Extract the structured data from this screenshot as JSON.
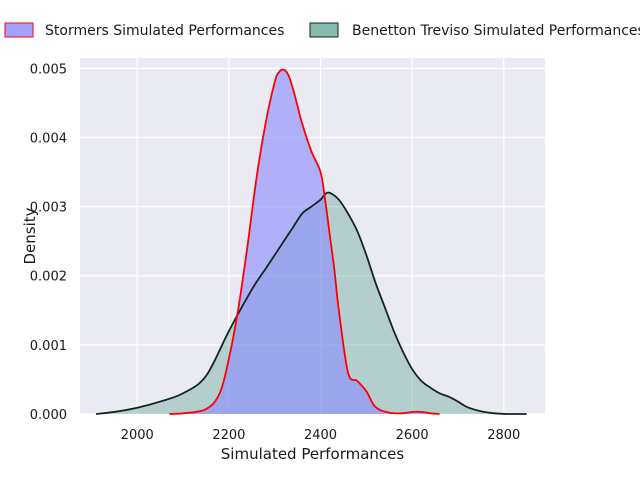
{
  "chart_data": {
    "type": "area",
    "title": "",
    "xlabel": "Simulated Performances",
    "ylabel": "Density",
    "xlim": [
      1875,
      2890
    ],
    "ylim": [
      0,
      0.00515
    ],
    "xticks": [
      2000,
      2200,
      2400,
      2600,
      2800
    ],
    "xtick_labels": [
      "2000",
      "2200",
      "2400",
      "2600",
      "2800"
    ],
    "yticks": [
      0,
      0.001,
      0.002,
      0.003,
      0.004,
      0.005
    ],
    "ytick_labels": [
      "0.000",
      "0.001",
      "0.002",
      "0.003",
      "0.004",
      "0.005"
    ],
    "grid": true,
    "legend_position": "top",
    "series": [
      {
        "name": "Stormers Simulated Performances",
        "fill_color": "#8c8cff",
        "line_color": "#ff0000",
        "x": [
          2070,
          2100,
          2150,
          2180,
          2200,
          2220,
          2240,
          2260,
          2280,
          2300,
          2310,
          2320,
          2330,
          2340,
          2350,
          2360,
          2380,
          2400,
          2410,
          2420,
          2430,
          2440,
          2460,
          2480,
          2500,
          2520,
          2550,
          2580,
          2600,
          2620,
          2640,
          2660
        ],
        "y": [
          0.0,
          1e-05,
          7e-05,
          0.0003,
          0.0008,
          0.0015,
          0.0024,
          0.0034,
          0.0042,
          0.0048,
          0.00495,
          0.00498,
          0.0049,
          0.0047,
          0.00445,
          0.0042,
          0.0038,
          0.0035,
          0.0031,
          0.0026,
          0.0021,
          0.0015,
          0.0006,
          0.00048,
          0.00033,
          0.0001,
          2e-05,
          1e-05,
          3e-05,
          3e-05,
          1e-05,
          0.0
        ]
      },
      {
        "name": "Benetton Treviso Simulated Performances",
        "fill_color": "#6aa89a",
        "line_color": "#14251f",
        "x": [
          1910,
          1950,
          2000,
          2050,
          2100,
          2150,
          2200,
          2250,
          2280,
          2300,
          2320,
          2340,
          2360,
          2380,
          2400,
          2410,
          2420,
          2440,
          2460,
          2480,
          2500,
          2520,
          2540,
          2560,
          2580,
          2600,
          2620,
          2640,
          2660,
          2680,
          2700,
          2720,
          2750,
          2780,
          2810,
          2850
        ],
        "y": [
          0.0,
          3e-05,
          9e-05,
          0.00018,
          0.0003,
          0.00055,
          0.0012,
          0.0018,
          0.0021,
          0.0023,
          0.0025,
          0.0027,
          0.0029,
          0.003,
          0.0031,
          0.00318,
          0.0032,
          0.0031,
          0.0029,
          0.00265,
          0.0023,
          0.0019,
          0.00155,
          0.0012,
          0.0009,
          0.00065,
          0.00048,
          0.00038,
          0.0003,
          0.00025,
          0.00018,
          0.0001,
          4e-05,
          1e-05,
          0.0,
          0.0
        ]
      }
    ]
  }
}
